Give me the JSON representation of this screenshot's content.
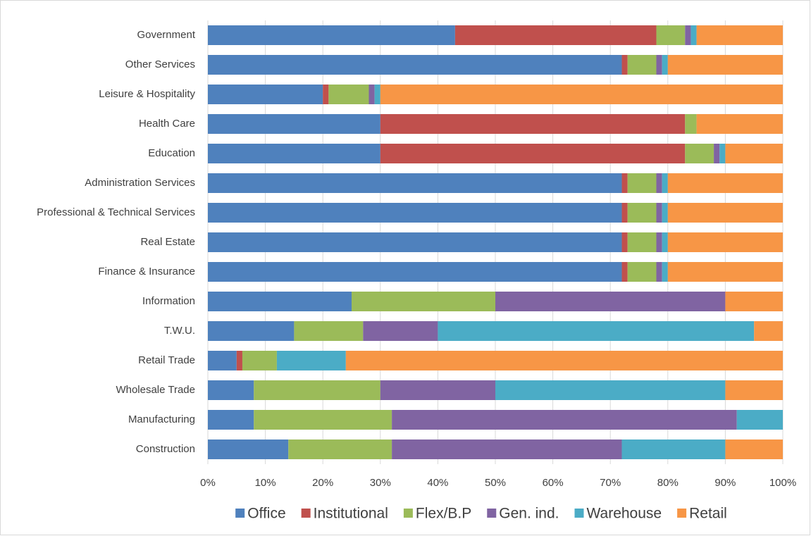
{
  "chart_data": {
    "type": "stacked_bar_horizontal",
    "categories": [
      "Government",
      "Other Services",
      "Leisure & Hospitality",
      "Health Care",
      "Education",
      "Administration Services",
      "Professional & Technical Services",
      "Real Estate",
      "Finance & Insurance",
      "Information",
      "T.W.U.",
      "Retail Trade",
      "Wholesale Trade",
      "Manufacturing",
      "Construction"
    ],
    "series": [
      {
        "name": "Office",
        "color": "#4f81bd",
        "values": [
          43,
          72,
          20,
          30,
          30,
          72,
          72,
          72,
          72,
          25,
          15,
          5,
          8,
          8,
          14
        ]
      },
      {
        "name": "Institutional",
        "color": "#c0504d",
        "values": [
          35,
          1,
          1,
          53,
          53,
          1,
          1,
          1,
          1,
          0,
          0,
          1,
          0,
          0,
          0
        ]
      },
      {
        "name": "Flex/B.P",
        "color": "#9bbb59",
        "values": [
          5,
          5,
          7,
          2,
          5,
          5,
          5,
          5,
          5,
          25,
          12,
          6,
          22,
          24,
          18
        ]
      },
      {
        "name": "Gen. ind.",
        "color": "#8064a2",
        "values": [
          1,
          1,
          1,
          0,
          1,
          1,
          1,
          1,
          1,
          40,
          13,
          0,
          20,
          60,
          40
        ]
      },
      {
        "name": "Warehouse",
        "color": "#4bacc6",
        "values": [
          1,
          1,
          1,
          0,
          1,
          1,
          1,
          1,
          1,
          0,
          55,
          12,
          40,
          8,
          18
        ]
      },
      {
        "name": "Retail",
        "color": "#f79646",
        "values": [
          15,
          20,
          70,
          15,
          10,
          20,
          20,
          20,
          20,
          10,
          5,
          76,
          10,
          0,
          10
        ]
      }
    ],
    "xlim": [
      0,
      100
    ],
    "xticks": [
      {
        "value": 0,
        "label": "0%"
      },
      {
        "value": 10,
        "label": "10%"
      },
      {
        "value": 20,
        "label": "20%"
      },
      {
        "value": 30,
        "label": "30%"
      },
      {
        "value": 40,
        "label": "40%"
      },
      {
        "value": 50,
        "label": "50%"
      },
      {
        "value": 60,
        "label": "60%"
      },
      {
        "value": 70,
        "label": "70%"
      },
      {
        "value": 80,
        "label": "80%"
      },
      {
        "value": 90,
        "label": "90%"
      },
      {
        "value": 100,
        "label": "100%"
      }
    ],
    "grid": true,
    "legend": "bottom"
  }
}
